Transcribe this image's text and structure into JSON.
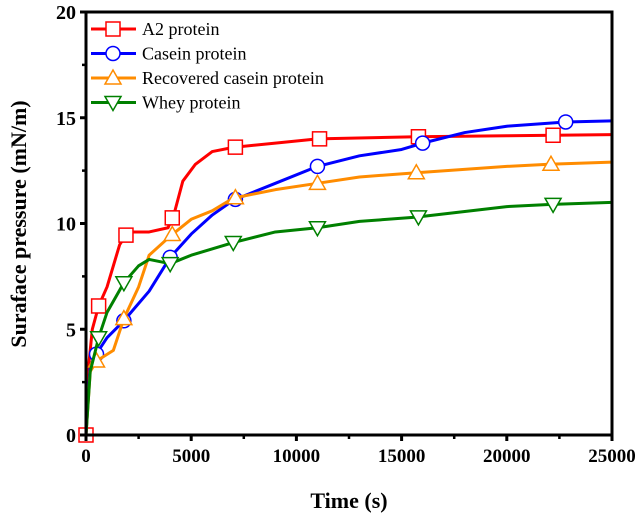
{
  "chart_data": {
    "type": "line",
    "title": "",
    "xlabel": "Time (s)",
    "ylabel": "Suraface pressure (mN/m)",
    "xlim": [
      0,
      25000
    ],
    "ylim": [
      0,
      20
    ],
    "xticks": [
      0,
      5000,
      10000,
      15000,
      20000,
      25000
    ],
    "yticks": [
      0,
      5,
      10,
      15,
      20
    ],
    "grid": false,
    "legend_position": "top-left",
    "series": [
      {
        "name": "A2 protein",
        "color": "#ff0000",
        "marker": "square",
        "points": [
          [
            0,
            0
          ],
          [
            100,
            3
          ],
          [
            300,
            5
          ],
          [
            600,
            6.1
          ],
          [
            1000,
            7
          ],
          [
            1300,
            8
          ],
          [
            1600,
            9
          ],
          [
            2000,
            9.6
          ],
          [
            3000,
            9.6
          ],
          [
            3900,
            9.8
          ],
          [
            4200,
            10.5
          ],
          [
            4600,
            12
          ],
          [
            5200,
            12.8
          ],
          [
            6000,
            13.4
          ],
          [
            7000,
            13.6
          ],
          [
            9000,
            13.8
          ],
          [
            11000,
            14.0
          ],
          [
            15700,
            14.1
          ],
          [
            20000,
            14.15
          ],
          [
            25000,
            14.2
          ]
        ],
        "marker_x": [
          0,
          600,
          1900,
          4100,
          7100,
          11100,
          15800,
          22200
        ]
      },
      {
        "name": "Casein protein",
        "color": "#0000ff",
        "marker": "circle",
        "points": [
          [
            0,
            0
          ],
          [
            200,
            3.3
          ],
          [
            600,
            4
          ],
          [
            1000,
            4.6
          ],
          [
            1800,
            5.4
          ],
          [
            3000,
            6.8
          ],
          [
            4000,
            8.4
          ],
          [
            5000,
            9.5
          ],
          [
            6000,
            10.4
          ],
          [
            7000,
            11.1
          ],
          [
            9000,
            11.9
          ],
          [
            11000,
            12.7
          ],
          [
            13000,
            13.2
          ],
          [
            15000,
            13.5
          ],
          [
            16000,
            13.8
          ],
          [
            18000,
            14.3
          ],
          [
            20000,
            14.6
          ],
          [
            22800,
            14.8
          ],
          [
            25000,
            14.85
          ]
        ],
        "marker_x": [
          500,
          1800,
          4000,
          7100,
          11000,
          16000,
          22800
        ]
      },
      {
        "name": "Recovered casein protein",
        "color": "#ff8c00",
        "marker": "triangle-up",
        "points": [
          [
            0,
            0
          ],
          [
            200,
            3
          ],
          [
            500,
            3.5
          ],
          [
            1300,
            4
          ],
          [
            1800,
            5.5
          ],
          [
            2500,
            7
          ],
          [
            3000,
            8.5
          ],
          [
            4000,
            9.4
          ],
          [
            5000,
            10.2
          ],
          [
            6000,
            10.6
          ],
          [
            7000,
            11.2
          ],
          [
            9000,
            11.6
          ],
          [
            11000,
            11.9
          ],
          [
            13000,
            12.2
          ],
          [
            15700,
            12.4
          ],
          [
            20000,
            12.7
          ],
          [
            22000,
            12.8
          ],
          [
            25000,
            12.9
          ]
        ],
        "marker_x": [
          500,
          1800,
          4100,
          7100,
          11000,
          15700,
          22100
        ]
      },
      {
        "name": "Whey protein",
        "color": "#008000",
        "marker": "triangle-down",
        "points": [
          [
            0,
            0
          ],
          [
            200,
            3
          ],
          [
            600,
            4.6
          ],
          [
            1000,
            5.8
          ],
          [
            1800,
            7.2
          ],
          [
            2500,
            8
          ],
          [
            3000,
            8.3
          ],
          [
            4000,
            8.1
          ],
          [
            5000,
            8.5
          ],
          [
            7000,
            9.1
          ],
          [
            9000,
            9.6
          ],
          [
            11000,
            9.8
          ],
          [
            13000,
            10.1
          ],
          [
            15700,
            10.3
          ],
          [
            20000,
            10.8
          ],
          [
            22000,
            10.9
          ],
          [
            25000,
            11
          ]
        ],
        "marker_x": [
          600,
          1800,
          4000,
          7000,
          11000,
          15800,
          22200
        ]
      }
    ]
  }
}
